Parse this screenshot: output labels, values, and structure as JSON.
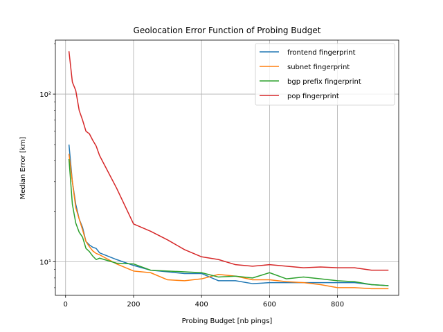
{
  "chart_data": {
    "type": "line",
    "title": "Geolocation Error Function of Probing Budget",
    "xlabel": "Probing Budget [nb pings]",
    "ylabel": "Median Error [km]",
    "xlim": [
      -30,
      980
    ],
    "ylim": [
      6.3,
      210
    ],
    "yscale": "log",
    "grid": true,
    "legend_position": "top-right",
    "x_ticks": [
      0,
      200,
      400,
      600,
      800
    ],
    "x_tick_labels": [
      "0",
      "200",
      "400",
      "600",
      "800"
    ],
    "y_ticks": [
      10,
      100
    ],
    "y_tick_labels": [
      "10¹",
      "10²"
    ],
    "series": [
      {
        "name": "frontend fingerprint",
        "color": "#1f77b4",
        "x": [
          10,
          20,
          30,
          40,
          50,
          60,
          70,
          80,
          90,
          100,
          150,
          200,
          250,
          300,
          350,
          400,
          450,
          500,
          550,
          600,
          650,
          700,
          750,
          800,
          850,
          900,
          950
        ],
        "y": [
          50,
          30,
          22,
          18,
          16,
          13.2,
          12.6,
          12.2,
          12.0,
          11.3,
          10.3,
          9.5,
          8.9,
          8.7,
          8.5,
          8.5,
          7.7,
          7.7,
          7.4,
          7.5,
          7.5,
          7.5,
          7.5,
          7.5,
          7.5,
          7.3,
          7.2
        ]
      },
      {
        "name": "subnet fingerprint",
        "color": "#ff7f0e",
        "x": [
          10,
          20,
          30,
          40,
          50,
          60,
          70,
          80,
          90,
          100,
          150,
          200,
          250,
          300,
          350,
          400,
          450,
          500,
          550,
          600,
          650,
          700,
          750,
          800,
          850,
          900,
          950
        ],
        "y": [
          44,
          30,
          21,
          18,
          15.5,
          13.2,
          12.3,
          11.6,
          11.2,
          11.0,
          9.7,
          8.8,
          8.6,
          7.8,
          7.7,
          7.9,
          8.4,
          8.2,
          7.8,
          7.8,
          7.6,
          7.5,
          7.3,
          7.0,
          7.0,
          6.9,
          6.9
        ]
      },
      {
        "name": "bgp prefix fingerprint",
        "color": "#2ca02c",
        "x": [
          10,
          20,
          30,
          40,
          50,
          60,
          70,
          80,
          90,
          100,
          150,
          200,
          250,
          300,
          350,
          400,
          450,
          500,
          550,
          600,
          650,
          700,
          750,
          800,
          850,
          900,
          950
        ],
        "y": [
          41,
          22,
          17,
          15,
          14,
          12,
          11.5,
          10.8,
          10.3,
          10.5,
          9.8,
          9.7,
          8.9,
          8.8,
          8.7,
          8.6,
          8.1,
          8.2,
          8.0,
          8.6,
          7.9,
          8.1,
          7.9,
          7.7,
          7.6,
          7.3,
          7.2
        ]
      },
      {
        "name": "pop fingerprint",
        "color": "#d62728",
        "x": [
          10,
          20,
          30,
          40,
          50,
          60,
          70,
          80,
          90,
          100,
          150,
          200,
          250,
          300,
          350,
          400,
          450,
          500,
          550,
          600,
          650,
          700,
          750,
          800,
          850,
          900,
          950
        ],
        "y": [
          180,
          118,
          105,
          80,
          70,
          60,
          58,
          53,
          49,
          43,
          27.5,
          16.8,
          15.2,
          13.5,
          11.8,
          10.7,
          10.3,
          9.6,
          9.4,
          9.6,
          9.4,
          9.2,
          9.3,
          9.2,
          9.2,
          8.9,
          8.9
        ]
      }
    ]
  }
}
